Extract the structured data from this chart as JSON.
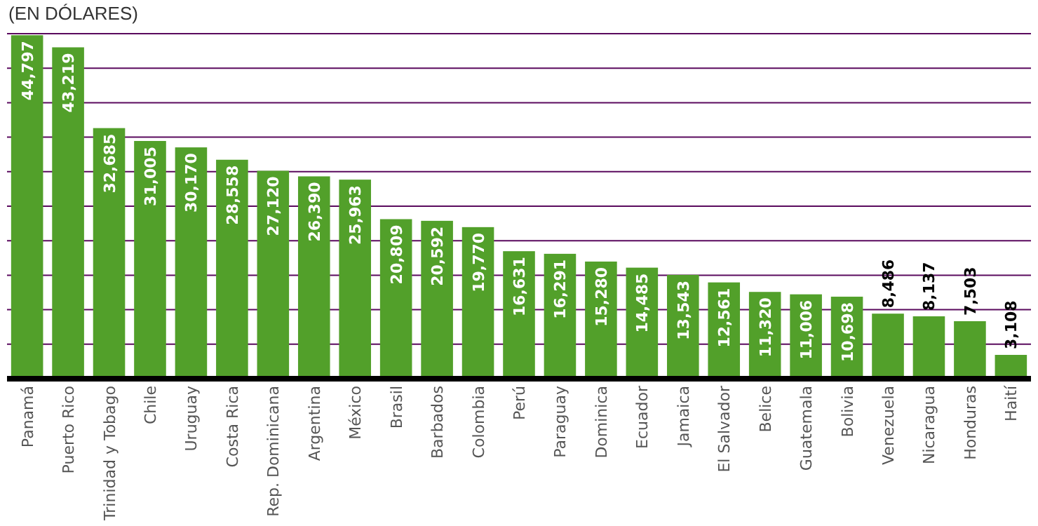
{
  "chart_data": {
    "type": "bar",
    "title": "(EN DÓLARES)",
    "categories": [
      "Panamá",
      "Puerto Rico",
      "Trinidad y Tobago",
      "Chile",
      "Uruguay",
      "Costa Rica",
      "Rep. Dominicana",
      "Argentina",
      "México",
      "Brasil",
      "Barbados",
      "Colombia",
      "Perú",
      "Paraguay",
      "Dominica",
      "Ecuador",
      "Jamaica",
      "El Salvador",
      "Belice",
      "Guatemala",
      "Bolivia",
      "Venezuela",
      "Nicaragua",
      "Honduras",
      "Haití"
    ],
    "values": [
      44797,
      43219,
      32685,
      31005,
      30170,
      28558,
      27120,
      26390,
      25963,
      20809,
      20592,
      19770,
      16631,
      16291,
      15280,
      14485,
      13543,
      12561,
      11320,
      11006,
      10698,
      8486,
      8137,
      7503,
      3108
    ],
    "value_labels": [
      "44,797",
      "43,219",
      "32,685",
      "31,005",
      "30,170",
      "28,558",
      "27,120",
      "26,390",
      "25,963",
      "20,809",
      "20,592",
      "19,770",
      "16,631",
      "16,291",
      "15,280",
      "14,485",
      "13,543",
      "12,561",
      "11,320",
      "11,006",
      "10,698",
      "8,486",
      "8,137",
      "7,503",
      "3,108"
    ],
    "color": "#52a02a",
    "ylim": [
      0,
      45000
    ],
    "yticks": [
      {
        "value": 4500,
        "label": null
      },
      {
        "value": 9000,
        "label": null
      },
      {
        "value": 13500,
        "label": null
      },
      {
        "value": 18000,
        "label": null
      },
      {
        "value": 22500,
        "label": null
      },
      {
        "value": 27000,
        "label": null
      },
      {
        "value": 31500,
        "label": null
      },
      {
        "value": 36000,
        "label": null
      },
      {
        "value": 40500,
        "label": null
      },
      {
        "value": 45000,
        "label": null
      }
    ],
    "grid": "y",
    "tick_labels": "x"
  }
}
